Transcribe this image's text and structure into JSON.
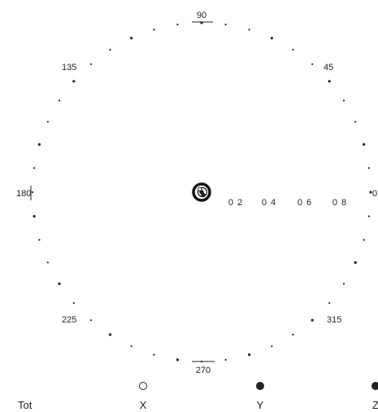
{
  "chart_data": {
    "type": "scatter",
    "subtype": "polar",
    "title": "",
    "angle_ticks": [
      {
        "angle": 90,
        "label": "90"
      },
      {
        "angle": 45,
        "label": "45"
      },
      {
        "angle": 135,
        "label": "135"
      },
      {
        "angle": 180,
        "label": "180"
      },
      {
        "angle": 0,
        "label": "0"
      },
      {
        "angle": 225,
        "label": "225"
      },
      {
        "angle": 315,
        "label": "315"
      },
      {
        "angle": 270,
        "label": "270"
      }
    ],
    "radial_ticks": [
      {
        "r": 0.2,
        "label": "0 2"
      },
      {
        "r": 0.4,
        "label": "0 4"
      },
      {
        "r": 0.6,
        "label": "0 6"
      },
      {
        "r": 0.8,
        "label": "0 8"
      }
    ],
    "r_range": [
      0,
      1
    ],
    "grid": false,
    "legend_position": "bottom",
    "legend_title": "Tot",
    "series": [
      {
        "name": "X",
        "marker": "open-circle",
        "points": [
          {
            "angle": 120,
            "r": 0.02
          }
        ]
      },
      {
        "name": "Y",
        "marker": "filled-circle",
        "points": [
          {
            "angle": 300,
            "r": 0.02
          }
        ]
      },
      {
        "name": "Z",
        "marker": "filled-circle",
        "points": [
          {
            "angle": 0,
            "r": 0.0
          }
        ]
      }
    ],
    "colors": {
      "ink": "#222222",
      "background": "#ffffff"
    }
  }
}
